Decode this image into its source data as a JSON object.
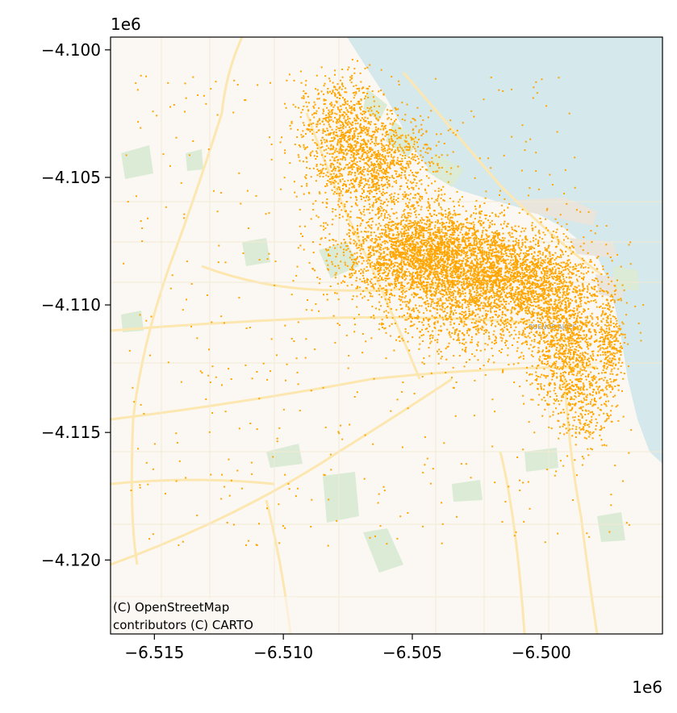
{
  "chart_data": {
    "type": "scatter",
    "title": "",
    "xlabel": "",
    "ylabel": "",
    "x_offset_label": "1e6",
    "y_offset_label": "1e6",
    "xlim": [
      -6.5167,
      -6.4953
    ],
    "ylim": [
      -4.1229,
      -4.0995
    ],
    "x_ticks": [
      -6.515,
      -6.51,
      -6.505,
      -6.5
    ],
    "x_tick_labels": [
      "−6.515",
      "−6.510",
      "−6.505",
      "−6.500"
    ],
    "y_ticks": [
      -4.1,
      -4.105,
      -4.11,
      -4.115,
      -4.12
    ],
    "y_tick_labels": [
      "−4.100",
      "−4.105",
      "−4.110",
      "−4.115",
      "−4.120"
    ],
    "grid": false,
    "legend": "none",
    "marker_color": "#ffa500",
    "approx_point_count": 30000,
    "density_clusters": [
      {
        "x": -6.5045,
        "y": -4.108,
        "sx": 0.0016,
        "sy": 0.0009,
        "weight": 0.3
      },
      {
        "x": -6.501,
        "y": -4.109,
        "sx": 0.0015,
        "sy": 0.001,
        "weight": 0.22
      },
      {
        "x": -6.5065,
        "y": -4.1045,
        "sx": 0.0012,
        "sy": 0.001,
        "weight": 0.14
      },
      {
        "x": -6.499,
        "y": -4.1115,
        "sx": 0.0008,
        "sy": 0.0012,
        "weight": 0.12
      },
      {
        "x": -6.503,
        "y": -4.11,
        "sx": 0.0018,
        "sy": 0.0011,
        "weight": 0.1
      },
      {
        "x": -6.5078,
        "y": -4.1028,
        "sx": 0.0008,
        "sy": 0.001,
        "weight": 0.06
      },
      {
        "x": -6.4973,
        "y": -4.1115,
        "sx": 0.00025,
        "sy": 0.0011,
        "weight": 0.03
      },
      {
        "x": -6.4985,
        "y": -4.114,
        "sx": 0.0006,
        "sy": 0.0009,
        "weight": 0.03
      }
    ],
    "scatter_region": {
      "x": [
        -6.5162,
        -6.4965
      ],
      "y": [
        -4.1195,
        -4.101
      ]
    },
    "background_scatter_fraction": 0.06
  },
  "basemap": {
    "attribution_line1": "(C) OpenStreetMap",
    "attribution_line2": "contributors (C) CARTO",
    "city_label": "BUENOS AIRES",
    "water_color": "#d5e8eb",
    "land_color": "#fbf8f3",
    "park_color": "#dcebd6",
    "road_color": "#fde7b0"
  }
}
